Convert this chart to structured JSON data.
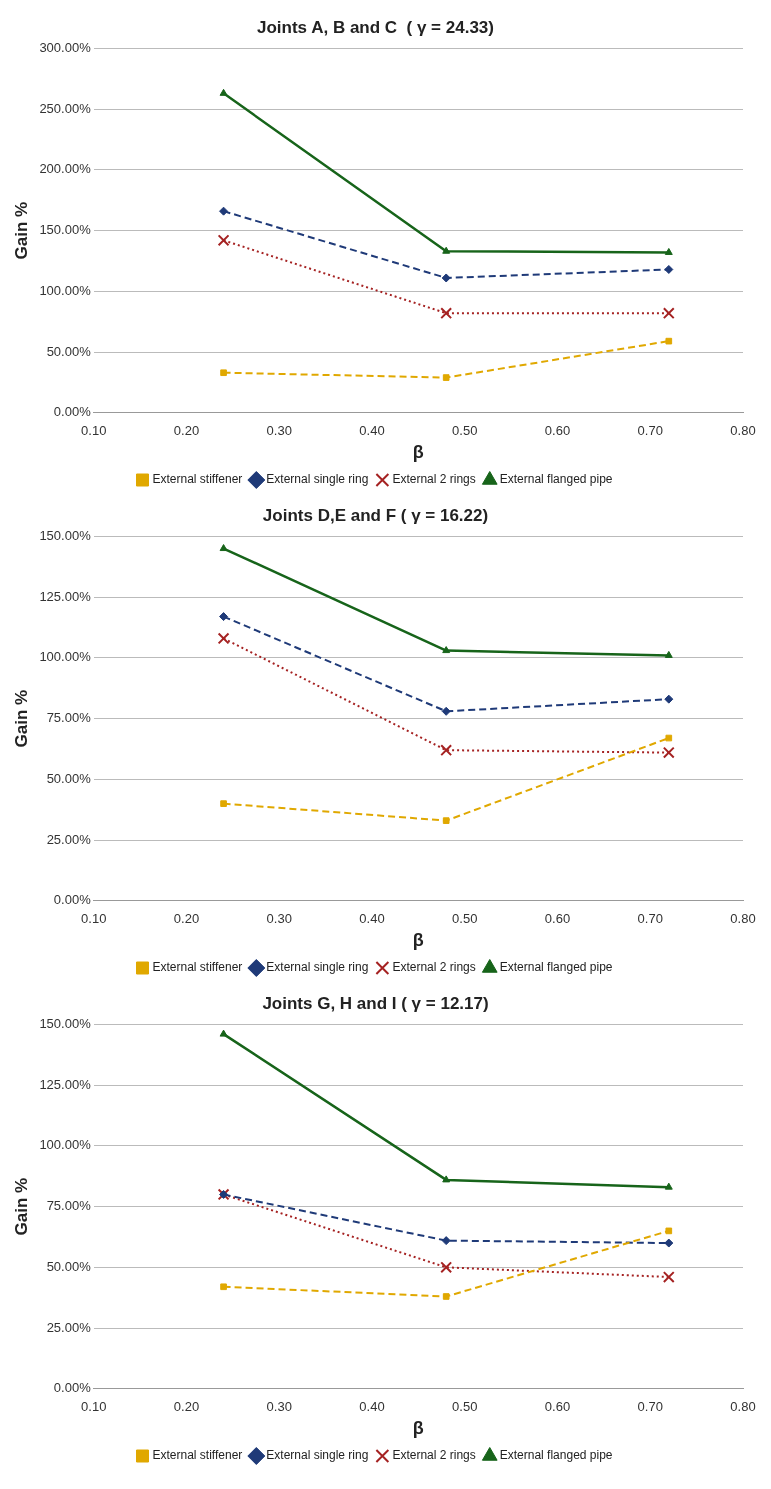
{
  "chart_data": [
    {
      "type": "line",
      "title": "Joints A, B and C  ( γ = 24.33)",
      "xlabel": "β",
      "ylabel": "Gain %",
      "x": [
        0.24,
        0.48,
        0.72
      ],
      "xlim": [
        0.1,
        0.8
      ],
      "xticks": [
        {
          "value": 0.1,
          "label": "0.10"
        },
        {
          "value": 0.2,
          "label": "0.20"
        },
        {
          "value": 0.3,
          "label": "0.30"
        },
        {
          "value": 0.4,
          "label": "0.40"
        },
        {
          "value": 0.5,
          "label": "0.50"
        },
        {
          "value": 0.6,
          "label": "0.60"
        },
        {
          "value": 0.7,
          "label": "0.70"
        },
        {
          "value": 0.8,
          "label": "0.80"
        }
      ],
      "ylim": [
        0,
        300
      ],
      "yticks": [
        {
          "value": 0,
          "label": "0.00%"
        },
        {
          "value": 50,
          "label": "50.00%"
        },
        {
          "value": 100,
          "label": "100.00%"
        },
        {
          "value": 150,
          "label": "150.00%"
        },
        {
          "value": 200,
          "label": "200.00%"
        },
        {
          "value": 250,
          "label": "250.00%"
        },
        {
          "value": 300,
          "label": "300.00%"
        }
      ],
      "grid": "y",
      "legend": "bottom",
      "series": [
        {
          "name": "External stiffener",
          "color": "#e0a800",
          "values": [
            33,
            29,
            59
          ],
          "marker": "square",
          "line_style": "dashed"
        },
        {
          "name": "External single ring",
          "color": "#1f3a78",
          "values": [
            166,
            111,
            118
          ],
          "marker": "diamond",
          "line_style": "dashed"
        },
        {
          "name": "External 2 rings",
          "color": "#a52222",
          "values": [
            142,
            82,
            82
          ],
          "marker": "cross",
          "line_style": "dotted"
        },
        {
          "name": "External flanged pipe",
          "color": "#17641a",
          "values": [
            263,
            133,
            132
          ],
          "marker": "triangle",
          "line_style": "solid"
        }
      ]
    },
    {
      "type": "line",
      "title": "Joints D,E and F ( γ = 16.22)",
      "xlabel": "β",
      "ylabel": "Gain %",
      "x": [
        0.24,
        0.48,
        0.72
      ],
      "xlim": [
        0.1,
        0.8
      ],
      "xticks": [
        {
          "value": 0.1,
          "label": "0.10"
        },
        {
          "value": 0.2,
          "label": "0.20"
        },
        {
          "value": 0.3,
          "label": "0.30"
        },
        {
          "value": 0.4,
          "label": "0.40"
        },
        {
          "value": 0.5,
          "label": "0.50"
        },
        {
          "value": 0.6,
          "label": "0.60"
        },
        {
          "value": 0.7,
          "label": "0.70"
        },
        {
          "value": 0.8,
          "label": "0.80"
        }
      ],
      "ylim": [
        0,
        150
      ],
      "yticks": [
        {
          "value": 0,
          "label": "0.00%"
        },
        {
          "value": 25,
          "label": "25.00%"
        },
        {
          "value": 50,
          "label": "50.00%"
        },
        {
          "value": 75,
          "label": "75.00%"
        },
        {
          "value": 100,
          "label": "100.00%"
        },
        {
          "value": 125,
          "label": "125.00%"
        },
        {
          "value": 150,
          "label": "150.00%"
        }
      ],
      "grid": "y",
      "legend": "bottom",
      "series": [
        {
          "name": "External stiffener",
          "color": "#e0a800",
          "values": [
            40,
            33,
            67
          ],
          "marker": "square",
          "line_style": "dashed"
        },
        {
          "name": "External single ring",
          "color": "#1f3a78",
          "values": [
            117,
            78,
            83
          ],
          "marker": "diamond",
          "line_style": "dashed"
        },
        {
          "name": "External 2 rings",
          "color": "#a52222",
          "values": [
            108,
            62,
            61
          ],
          "marker": "cross",
          "line_style": "dotted"
        },
        {
          "name": "External flanged pipe",
          "color": "#17641a",
          "values": [
            145,
            103,
            101
          ],
          "marker": "triangle",
          "line_style": "solid"
        }
      ]
    },
    {
      "type": "line",
      "title": "Joints G, H and I ( γ = 12.17)",
      "xlabel": "β",
      "ylabel": "Gain %",
      "x": [
        0.24,
        0.48,
        0.72
      ],
      "xlim": [
        0.1,
        0.8
      ],
      "xticks": [
        {
          "value": 0.1,
          "label": "0.10"
        },
        {
          "value": 0.2,
          "label": "0.20"
        },
        {
          "value": 0.3,
          "label": "0.30"
        },
        {
          "value": 0.4,
          "label": "0.40"
        },
        {
          "value": 0.5,
          "label": "0.50"
        },
        {
          "value": 0.6,
          "label": "0.60"
        },
        {
          "value": 0.7,
          "label": "0.70"
        },
        {
          "value": 0.8,
          "label": "0.80"
        }
      ],
      "ylim": [
        0,
        150
      ],
      "yticks": [
        {
          "value": 0,
          "label": "0.00%"
        },
        {
          "value": 25,
          "label": "25.00%"
        },
        {
          "value": 50,
          "label": "50.00%"
        },
        {
          "value": 75,
          "label": "75.00%"
        },
        {
          "value": 100,
          "label": "100.00%"
        },
        {
          "value": 125,
          "label": "125.00%"
        },
        {
          "value": 150,
          "label": "150.00%"
        }
      ],
      "grid": "y",
      "legend": "bottom",
      "series": [
        {
          "name": "External stiffener",
          "color": "#e0a800",
          "values": [
            42,
            38,
            65
          ],
          "marker": "square",
          "line_style": "dashed"
        },
        {
          "name": "External single ring",
          "color": "#1f3a78",
          "values": [
            80,
            61,
            60
          ],
          "marker": "diamond",
          "line_style": "dashed"
        },
        {
          "name": "External 2 rings",
          "color": "#a52222",
          "values": [
            80,
            50,
            46
          ],
          "marker": "cross",
          "line_style": "dotted"
        },
        {
          "name": "External flanged pipe",
          "color": "#17641a",
          "values": [
            146,
            86,
            83
          ],
          "marker": "triangle",
          "line_style": "solid"
        }
      ]
    }
  ]
}
